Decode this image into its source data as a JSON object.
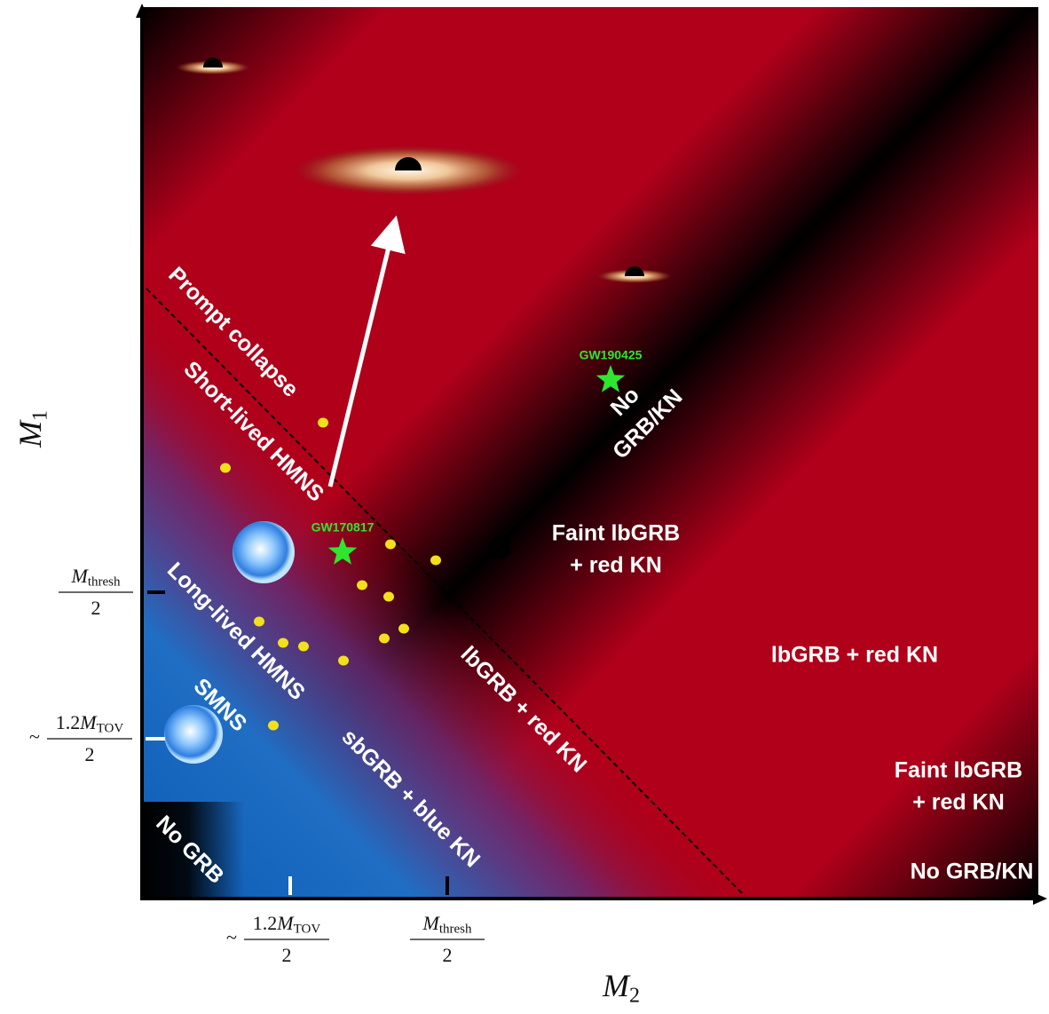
{
  "axes": {
    "y_label": {
      "symbol": "M",
      "subscript": "1"
    },
    "x_label": {
      "symbol": "M",
      "subscript": "2"
    },
    "y_ticks": [
      {
        "numerator": {
          "symbol": "M",
          "subscript": "thresh"
        },
        "denominator": "2"
      },
      {
        "approx": "~",
        "numerator": {
          "coefficient": "1.2",
          "symbol": "M",
          "subscript": "TOV"
        },
        "denominator": "2"
      }
    ],
    "x_ticks": [
      {
        "approx": "~",
        "numerator": {
          "coefficient": "1.2",
          "symbol": "M",
          "subscript": "TOV"
        },
        "denominator": "2"
      },
      {
        "numerator": {
          "symbol": "M",
          "subscript": "thresh"
        },
        "denominator": "2"
      }
    ]
  },
  "regions": [
    {
      "lines": [
        "Prompt collapse"
      ]
    },
    {
      "lines": [
        "Short-lived HMNS"
      ]
    },
    {
      "lines": [
        "Long-lived HMNS"
      ]
    },
    {
      "lines": [
        "SMNS"
      ]
    },
    {
      "lines": [
        "No GRB"
      ]
    },
    {
      "lines": [
        "sbGRB + blue KN"
      ]
    },
    {
      "lines": [
        "lbGRB + red KN"
      ]
    },
    {
      "lines": [
        "No",
        "GRB/KN"
      ]
    },
    {
      "lines": [
        "Faint lbGRB",
        "+ red KN"
      ]
    },
    {
      "lines": [
        "lbGRB + red KN"
      ]
    },
    {
      "lines": [
        "Faint lbGRB",
        "+ red KN"
      ]
    },
    {
      "lines": [
        "No GRB/KN"
      ]
    }
  ],
  "events": [
    "GW190425",
    "GW170817"
  ]
}
